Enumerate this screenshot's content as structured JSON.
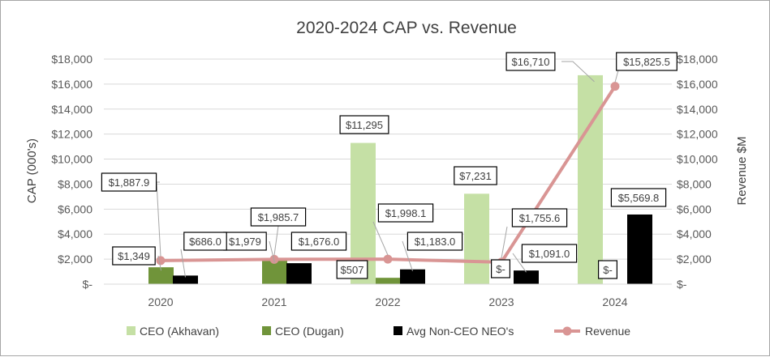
{
  "chart_data": {
    "type": "bar",
    "title": "2020-2024 CAP vs. Revenue",
    "categories": [
      "2020",
      "2021",
      "2022",
      "2023",
      "2024"
    ],
    "ylabel": "CAP (000's)",
    "y2label": "Revenue $M",
    "ylim": [
      0,
      18000
    ],
    "y2lim": [
      0,
      18000
    ],
    "y_ticks": [
      "$-",
      "$2,000",
      "$4,000",
      "$6,000",
      "$8,000",
      "$10,000",
      "$12,000",
      "$14,000",
      "$16,000",
      "$18,000"
    ],
    "y2_ticks": [
      "$-",
      "$2,000",
      "$4,000",
      "$6,000",
      "$8,000",
      "$10,000",
      "$12,000",
      "$14,000",
      "$16,000",
      "$18,000"
    ],
    "grid": true,
    "legend_position": "bottom",
    "series": [
      {
        "name": "CEO (Akhavan)",
        "type": "bar",
        "color": "#c5e0a5",
        "values": [
          null,
          null,
          11295,
          7231,
          16710
        ],
        "labels": [
          "",
          "",
          "$11,295",
          "$7,231",
          "$16,710"
        ]
      },
      {
        "name": "CEO (Dugan)",
        "type": "bar",
        "color": "#70943a",
        "values": [
          1349,
          1979,
          507,
          0,
          0
        ],
        "labels": [
          "$1,349",
          "$1,979",
          "$507",
          "$-",
          "$-"
        ]
      },
      {
        "name": "Avg Non-CEO NEO's",
        "type": "bar",
        "color": "#000000",
        "values": [
          686.0,
          1676.0,
          1183.0,
          1091.0,
          5569.8
        ],
        "labels": [
          "$686.0",
          "$1,676.0",
          "$1,183.0",
          "$1,091.0",
          "$5,569.8"
        ]
      },
      {
        "name": "Revenue",
        "type": "line",
        "axis": "right",
        "color": "#d99594",
        "values": [
          1887.9,
          1985.7,
          1998.1,
          1755.6,
          15825.5
        ],
        "labels": [
          "$1,887.9",
          "$1,985.7",
          "$1,998.1",
          "$1,755.6",
          "$15,825.5"
        ]
      }
    ]
  }
}
